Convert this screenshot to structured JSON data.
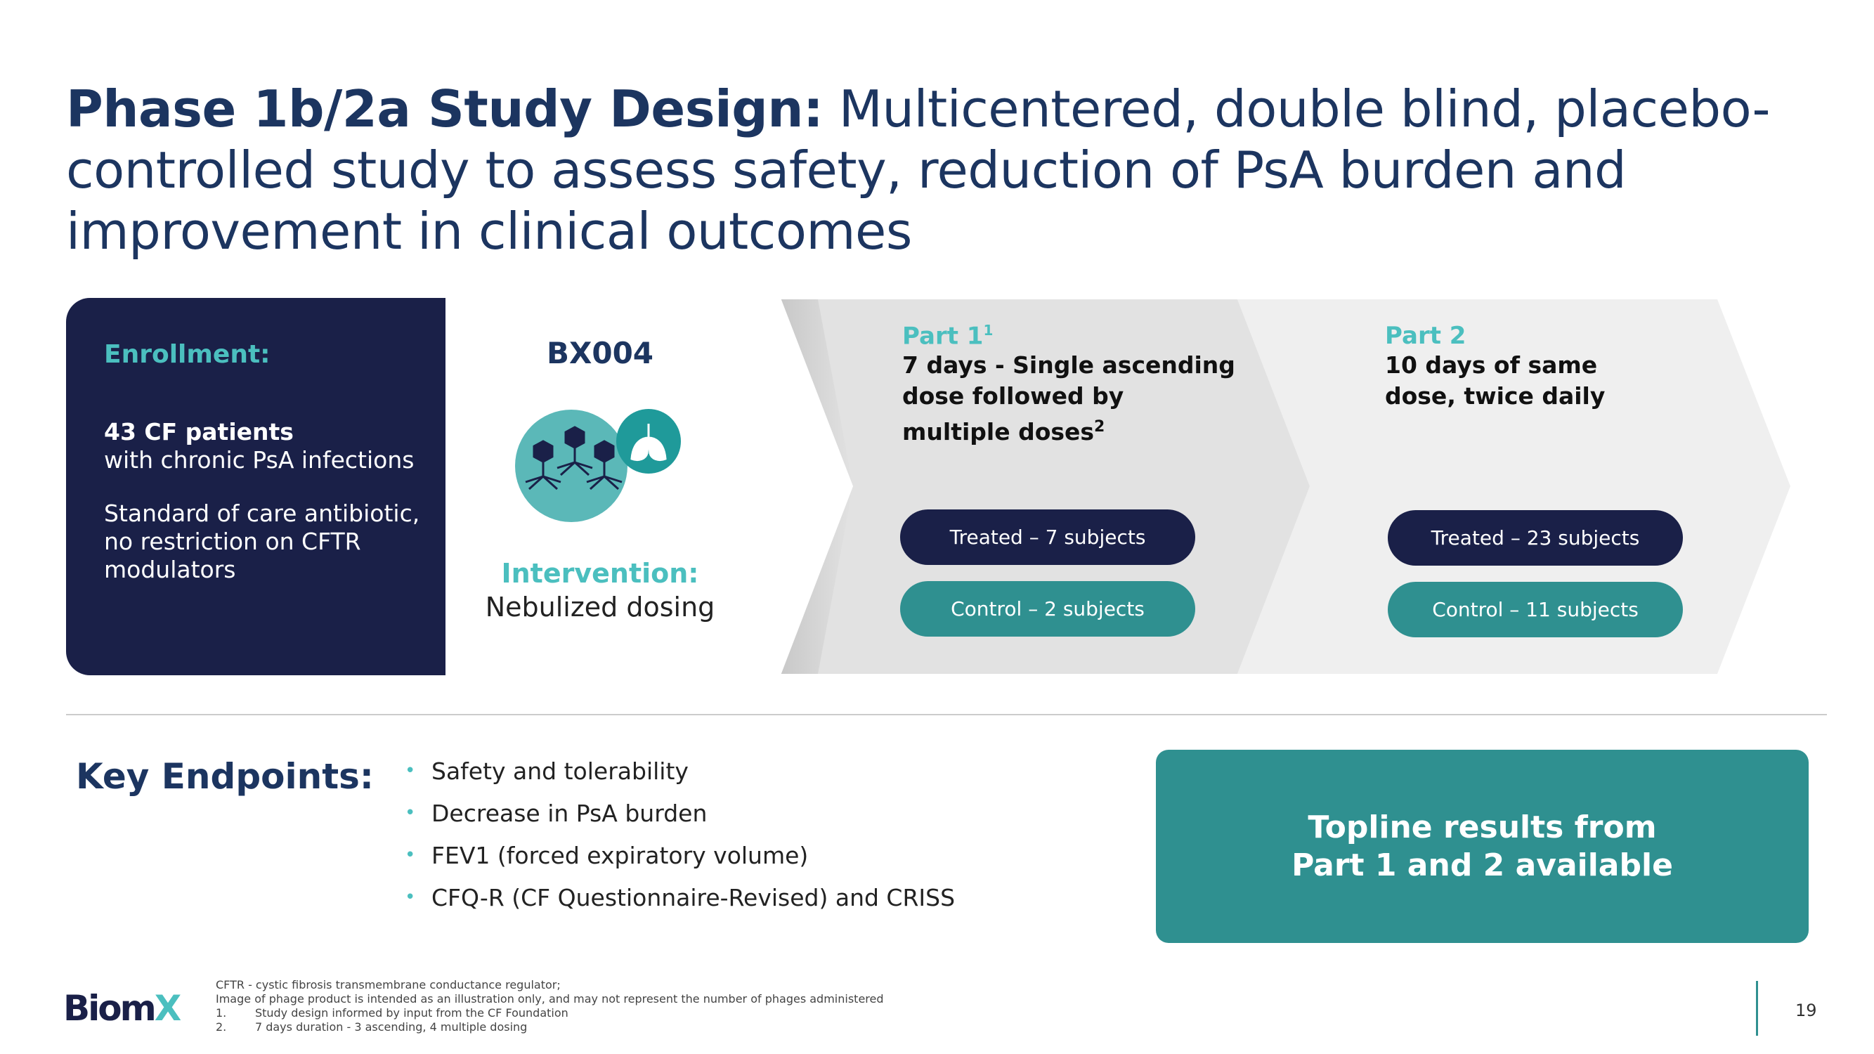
{
  "title": {
    "bold": "Phase 1b/2a Study Design:",
    "rest": " Multicentered, double blind, placebo-controlled study to assess safety, reduction of PsA burden and improvement in clinical outcomes"
  },
  "enrollment": {
    "heading": "Enrollment:",
    "patients_bold": "43 CF patients",
    "patients_rest": "with chronic PsA infections",
    "care_line1": "Standard of care antibiotic,",
    "care_line2": "no restriction on CFTR modulators"
  },
  "product": {
    "name": "BX004",
    "intervention_label": "Intervention:",
    "intervention_value": "Nebulized dosing",
    "icons": [
      "phage-icon",
      "lungs-icon"
    ]
  },
  "part1": {
    "heading": "Part 1",
    "sup": "1",
    "desc": "7 days - Single ascending dose followed by multiple doses",
    "desc_sup": "2",
    "treated": "Treated – 7 subjects",
    "control": "Control – 2 subjects"
  },
  "part2": {
    "heading": "Part 2",
    "desc": "10 days of same dose, twice daily",
    "treated": "Treated – 23 subjects",
    "control": "Control – 11 subjects"
  },
  "endpoints": {
    "heading": "Key Endpoints:",
    "items": [
      "Safety and tolerability",
      "Decrease in PsA burden",
      "FEV1 (forced expiratory volume)",
      "CFQ-R (CF Questionnaire-Revised) and CRISS"
    ]
  },
  "topline": "Topline results from Part 1 and 2 available",
  "footer": {
    "logo": "BiomX",
    "notes": [
      "CFTR - cystic fibrosis transmembrane conductance regulator;",
      "Image of phage product is intended as an illustration only, and may not represent the number of phages administered",
      "1.        Study design informed by input from the CF Foundation",
      "2.        7 days duration - 3 ascending, 4 multiple dosing"
    ],
    "page": "19"
  },
  "colors": {
    "navy": "#1a2048",
    "teal": "#2f9090",
    "accent": "#4bbfbf",
    "title": "#1c3560"
  }
}
